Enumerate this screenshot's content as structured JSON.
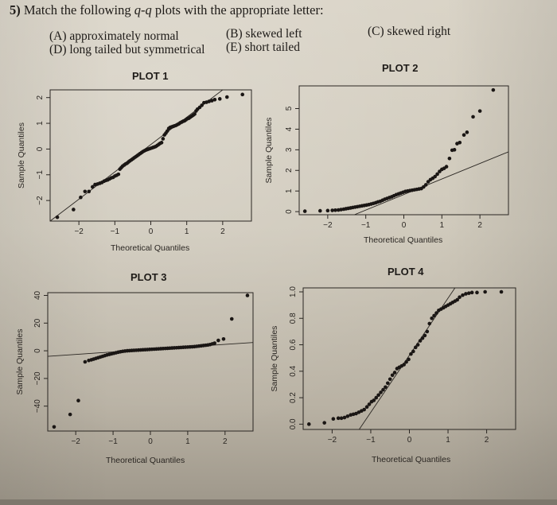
{
  "question": {
    "number": "5)",
    "text_before": " Match the following ",
    "italic": "q-q",
    "text_after": " plots with the appropriate letter:"
  },
  "options": [
    {
      "letter": "(A)",
      "label": "(A) approximately normal"
    },
    {
      "letter": "(B)",
      "label": "(B) skewed left"
    },
    {
      "letter": "(C)",
      "label": "(C) skewed right"
    },
    {
      "letter": "(D)",
      "label": "(D) long tailed but symmetrical"
    },
    {
      "letter": "(E)",
      "label": "(E) short tailed"
    }
  ],
  "colors": {
    "paper": "#d3cdbf",
    "ink": "#1e1b18",
    "points": "#1a1614"
  },
  "chart_data": [
    {
      "type": "scatter",
      "title": "PLOT 1",
      "xlabel": "Theoretical Quantiles",
      "ylabel": "Sample Quantiles",
      "xlim": [
        -2.8,
        2.8
      ],
      "ylim": [
        -2.8,
        2.3
      ],
      "xticks": [
        -2,
        -1,
        0,
        1,
        2
      ],
      "yticks": [
        -2,
        -1,
        0,
        1,
        2
      ],
      "reference_line": {
        "x": [
          -2.8,
          2.0
        ],
        "y": [
          -2.8,
          2.3
        ]
      },
      "points": {
        "x": [
          -2.6,
          -2.15,
          -1.95,
          -1.83,
          -1.72,
          -1.62,
          -1.55,
          -1.48,
          -1.42,
          -1.36,
          -1.3,
          -1.25,
          -1.2,
          -1.15,
          -1.1,
          -1.05,
          -1.0,
          -0.95,
          -0.9,
          -0.86,
          -0.82,
          -0.78,
          -0.74,
          -0.7,
          -0.66,
          -0.62,
          -0.58,
          -0.54,
          -0.5,
          -0.46,
          -0.42,
          -0.38,
          -0.34,
          -0.3,
          -0.26,
          -0.22,
          -0.18,
          -0.14,
          -0.1,
          -0.06,
          -0.02,
          0.02,
          0.06,
          0.1,
          0.14,
          0.18,
          0.22,
          0.26,
          0.3,
          0.34,
          0.38,
          0.42,
          0.46,
          0.5,
          0.54,
          0.58,
          0.62,
          0.66,
          0.7,
          0.74,
          0.78,
          0.82,
          0.86,
          0.9,
          0.94,
          0.98,
          1.02,
          1.06,
          1.1,
          1.14,
          1.18,
          1.22,
          1.26,
          1.3,
          1.36,
          1.42,
          1.48,
          1.55,
          1.62,
          1.7,
          1.78,
          1.92,
          2.12,
          2.55
        ],
        "y": [
          -2.65,
          -2.35,
          -1.88,
          -1.65,
          -1.65,
          -1.47,
          -1.38,
          -1.36,
          -1.33,
          -1.3,
          -1.25,
          -1.22,
          -1.2,
          -1.16,
          -1.12,
          -1.1,
          -1.05,
          -1.02,
          -0.98,
          -0.78,
          -0.72,
          -0.66,
          -0.62,
          -0.58,
          -0.55,
          -0.5,
          -0.46,
          -0.42,
          -0.38,
          -0.34,
          -0.3,
          -0.26,
          -0.22,
          -0.18,
          -0.14,
          -0.1,
          -0.07,
          -0.04,
          -0.02,
          0.0,
          0.02,
          0.04,
          0.06,
          0.08,
          0.1,
          0.14,
          0.18,
          0.22,
          0.25,
          0.4,
          0.55,
          0.62,
          0.7,
          0.8,
          0.84,
          0.86,
          0.88,
          0.9,
          0.92,
          0.95,
          0.98,
          1.02,
          1.05,
          1.08,
          1.1,
          1.14,
          1.18,
          1.2,
          1.24,
          1.28,
          1.32,
          1.36,
          1.48,
          1.55,
          1.62,
          1.7,
          1.8,
          1.82,
          1.85,
          1.88,
          1.92,
          1.95,
          2.02,
          2.12
        ]
      }
    },
    {
      "type": "scatter",
      "title": "PLOT 2",
      "xlabel": "Theoretical Quantiles",
      "ylabel": "Sample Quantiles",
      "xlim": [
        -2.75,
        2.75
      ],
      "ylim": [
        -0.15,
        6.1
      ],
      "xticks": [
        -2,
        -1,
        0,
        1,
        2
      ],
      "yticks": [
        0,
        1,
        2,
        3,
        4,
        5
      ],
      "reference_line": {
        "x": [
          -1.3,
          2.75
        ],
        "y": [
          -0.15,
          2.9
        ]
      },
      "points": {
        "x": [
          -2.6,
          -2.2,
          -2.0,
          -1.88,
          -1.8,
          -1.72,
          -1.65,
          -1.58,
          -1.52,
          -1.46,
          -1.4,
          -1.34,
          -1.28,
          -1.22,
          -1.16,
          -1.1,
          -1.04,
          -0.98,
          -0.92,
          -0.86,
          -0.8,
          -0.74,
          -0.68,
          -0.62,
          -0.56,
          -0.5,
          -0.44,
          -0.38,
          -0.32,
          -0.26,
          -0.2,
          -0.14,
          -0.08,
          -0.02,
          0.04,
          0.1,
          0.16,
          0.22,
          0.28,
          0.34,
          0.4,
          0.46,
          0.52,
          0.58,
          0.64,
          0.7,
          0.76,
          0.82,
          0.88,
          0.94,
          1.0,
          1.06,
          1.12,
          1.2,
          1.27,
          1.33,
          1.4,
          1.47,
          1.58,
          1.66,
          1.82,
          2.0,
          2.35
        ],
        "y": [
          0.02,
          0.04,
          0.05,
          0.06,
          0.07,
          0.08,
          0.1,
          0.12,
          0.14,
          0.16,
          0.18,
          0.2,
          0.22,
          0.24,
          0.26,
          0.28,
          0.3,
          0.32,
          0.34,
          0.37,
          0.4,
          0.43,
          0.47,
          0.5,
          0.55,
          0.6,
          0.64,
          0.68,
          0.72,
          0.77,
          0.82,
          0.86,
          0.9,
          0.94,
          0.98,
          1.0,
          1.02,
          1.04,
          1.06,
          1.08,
          1.1,
          1.12,
          1.2,
          1.3,
          1.45,
          1.55,
          1.62,
          1.7,
          1.82,
          1.95,
          2.05,
          2.1,
          2.18,
          2.58,
          2.98,
          3.0,
          3.3,
          3.35,
          3.72,
          3.85,
          4.6,
          4.88,
          5.9
        ]
      }
    },
    {
      "type": "scatter",
      "title": "PLOT 3",
      "xlabel": "Theoretical Quantiles",
      "ylabel": "Sample Quantiles",
      "xlim": [
        -2.75,
        2.75
      ],
      "ylim": [
        -58,
        42
      ],
      "xticks": [
        -2,
        -1,
        0,
        1,
        2
      ],
      "yticks": [
        -40,
        -20,
        0,
        20,
        40
      ],
      "reference_line": {
        "x": [
          -2.75,
          2.75
        ],
        "y": [
          -4,
          6
        ]
      },
      "points": {
        "x": [
          -2.58,
          -2.15,
          -1.93,
          -1.75,
          -1.65,
          -1.58,
          -1.52,
          -1.46,
          -1.4,
          -1.34,
          -1.28,
          -1.22,
          -1.16,
          -1.1,
          -1.04,
          -0.98,
          -0.92,
          -0.86,
          -0.8,
          -0.74,
          -0.68,
          -0.62,
          -0.56,
          -0.5,
          -0.44,
          -0.38,
          -0.32,
          -0.26,
          -0.2,
          -0.14,
          -0.08,
          -0.02,
          0.04,
          0.1,
          0.16,
          0.22,
          0.28,
          0.34,
          0.4,
          0.46,
          0.52,
          0.58,
          0.64,
          0.7,
          0.76,
          0.82,
          0.88,
          0.94,
          1.0,
          1.06,
          1.12,
          1.18,
          1.24,
          1.3,
          1.36,
          1.42,
          1.48,
          1.54,
          1.6,
          1.66,
          1.72,
          1.82,
          1.96,
          2.18,
          2.6
        ],
        "y": [
          -55,
          -46,
          -36,
          -8,
          -7,
          -6.5,
          -6,
          -5.5,
          -5,
          -4.5,
          -4,
          -3.5,
          -3,
          -2.6,
          -2.2,
          -1.8,
          -1.4,
          -1.0,
          -0.7,
          -0.4,
          -0.2,
          0.0,
          0.1,
          0.2,
          0.3,
          0.4,
          0.5,
          0.6,
          0.7,
          0.8,
          0.9,
          1.0,
          1.1,
          1.2,
          1.3,
          1.4,
          1.5,
          1.6,
          1.7,
          1.8,
          1.9,
          2.0,
          2.1,
          2.2,
          2.3,
          2.4,
          2.5,
          2.6,
          2.7,
          2.8,
          2.9,
          3.0,
          3.2,
          3.4,
          3.6,
          3.8,
          4.0,
          4.2,
          4.5,
          5.0,
          5.5,
          7.5,
          8.5,
          23,
          40
        ]
      }
    },
    {
      "type": "scatter",
      "title": "PLOT 4",
      "xlabel": "Theoretical Quantiles",
      "ylabel": "Sample Quantiles",
      "xlim": [
        -2.75,
        2.75
      ],
      "ylim": [
        -0.04,
        1.03
      ],
      "xticks": [
        -2,
        -1,
        0,
        1,
        2
      ],
      "yticks": [
        0.0,
        0.2,
        0.4,
        0.6,
        0.8,
        1.0
      ],
      "yticklabels": [
        "0.0",
        "0.2",
        "0.4",
        "0.6",
        "0.8",
        "1.0"
      ],
      "reference_line": {
        "x": [
          -1.3,
          1.18
        ],
        "y": [
          -0.04,
          1.03
        ]
      },
      "points": {
        "x": [
          -2.6,
          -2.2,
          -1.97,
          -1.84,
          -1.76,
          -1.68,
          -1.6,
          -1.52,
          -1.45,
          -1.38,
          -1.31,
          -1.24,
          -1.17,
          -1.1,
          -1.04,
          -0.98,
          -0.92,
          -0.86,
          -0.8,
          -0.74,
          -0.68,
          -0.62,
          -0.56,
          -0.5,
          -0.44,
          -0.38,
          -0.32,
          -0.26,
          -0.2,
          -0.14,
          -0.08,
          -0.02,
          0.04,
          0.1,
          0.16,
          0.22,
          0.28,
          0.34,
          0.4,
          0.46,
          0.52,
          0.58,
          0.64,
          0.7,
          0.76,
          0.82,
          0.88,
          0.94,
          1.0,
          1.06,
          1.12,
          1.18,
          1.24,
          1.3,
          1.38,
          1.46,
          1.54,
          1.62,
          1.75,
          1.96,
          2.38
        ],
        "y": [
          0.0,
          0.01,
          0.04,
          0.045,
          0.045,
          0.05,
          0.06,
          0.07,
          0.075,
          0.08,
          0.09,
          0.1,
          0.11,
          0.13,
          0.15,
          0.17,
          0.18,
          0.2,
          0.22,
          0.24,
          0.26,
          0.28,
          0.31,
          0.34,
          0.37,
          0.39,
          0.42,
          0.43,
          0.44,
          0.45,
          0.47,
          0.49,
          0.53,
          0.55,
          0.58,
          0.6,
          0.63,
          0.65,
          0.67,
          0.7,
          0.76,
          0.8,
          0.82,
          0.84,
          0.86,
          0.87,
          0.88,
          0.89,
          0.9,
          0.91,
          0.92,
          0.93,
          0.94,
          0.96,
          0.975,
          0.985,
          0.99,
          0.995,
          0.995,
          1.0,
          1.0
        ]
      }
    }
  ]
}
